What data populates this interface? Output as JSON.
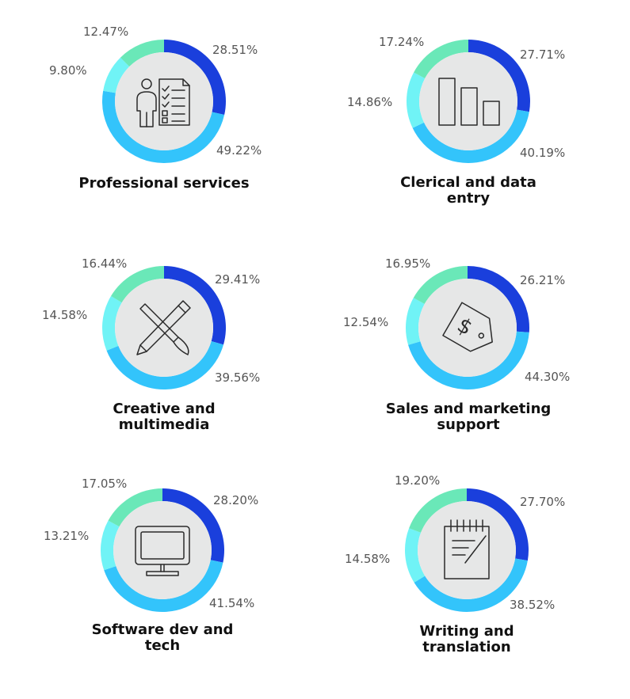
{
  "colors": {
    "dark_blue": "#1a3fdc",
    "light_blue": "#33c4fb",
    "cyan": "#70f3f6",
    "mint": "#6ae8b8",
    "center_fill": "#e6e7e7"
  },
  "chart_data": [
    {
      "type": "pie",
      "title": "Professional services",
      "icon": "person-checklist-icon",
      "values": [
        28.51,
        49.22,
        9.8,
        12.47
      ],
      "labels": [
        "28.51%",
        "49.22%",
        "9.80%",
        "12.47%"
      ]
    },
    {
      "type": "pie",
      "title": "Clerical and data entry",
      "icon": "bar-chart-icon",
      "values": [
        27.71,
        40.19,
        14.86,
        17.24
      ],
      "labels": [
        "27.71%",
        "40.19%",
        "14.86%",
        "17.24%"
      ]
    },
    {
      "type": "pie",
      "title": "Creative and multimedia",
      "icon": "pencil-brush-icon",
      "values": [
        29.41,
        39.56,
        14.58,
        16.44
      ],
      "labels": [
        "29.41%",
        "39.56%",
        "14.58%",
        "16.44%"
      ]
    },
    {
      "type": "pie",
      "title": "Sales and marketing support",
      "icon": "price-tag-icon",
      "values": [
        26.21,
        44.3,
        12.54,
        16.95
      ],
      "labels": [
        "26.21%",
        "44.30%",
        "12.54%",
        "16.95%"
      ]
    },
    {
      "type": "pie",
      "title": "Software dev and tech",
      "icon": "computer-monitor-icon",
      "values": [
        28.2,
        41.54,
        13.21,
        17.05
      ],
      "labels": [
        "28.20%",
        "41.54%",
        "13.21%",
        "17.05%"
      ]
    },
    {
      "type": "pie",
      "title": "Writing and translation",
      "icon": "notepad-pen-icon",
      "values": [
        27.7,
        38.52,
        14.58,
        19.2
      ],
      "labels": [
        "27.70%",
        "38.52%",
        "14.58%",
        "19.20%"
      ]
    }
  ]
}
